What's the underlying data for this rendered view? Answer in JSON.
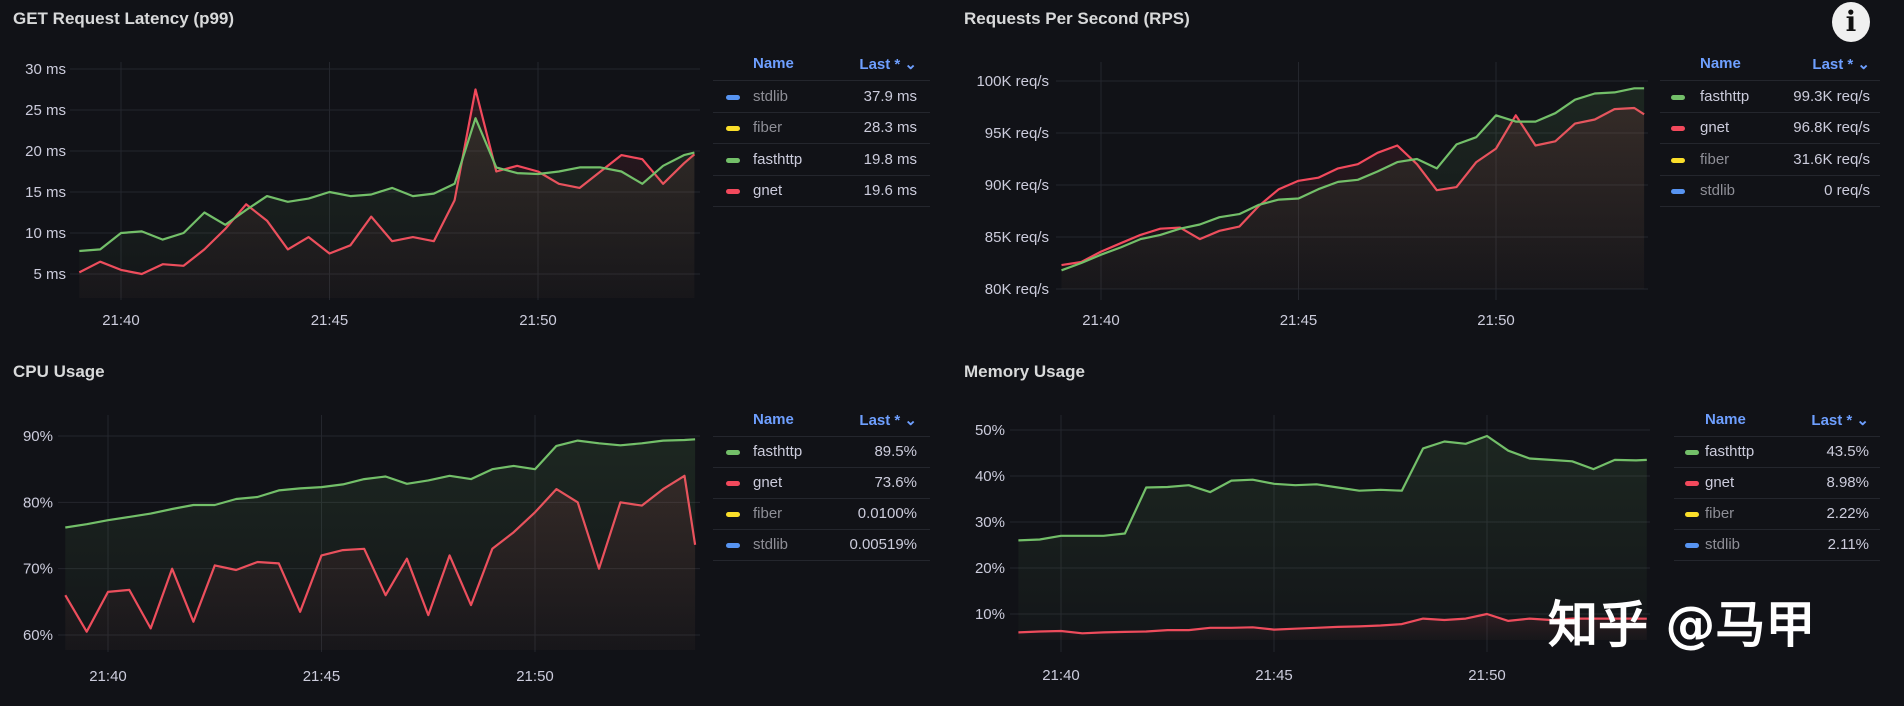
{
  "info_button_glyph": "i",
  "watermark": "知乎 @马甲",
  "colors": {
    "fasthttp": "#73bf69",
    "gnet": "#f2495c",
    "fiber": "#fade2a",
    "stdlib": "#5794f2",
    "legend_header": "#6e9fff"
  },
  "x": [
    "21:39:00",
    "21:39:30",
    "21:40:00",
    "21:40:30",
    "21:41:00",
    "21:41:30",
    "21:42:00",
    "21:42:30",
    "21:43:00",
    "21:43:30",
    "21:44:00",
    "21:44:30",
    "21:45:00",
    "21:45:30",
    "21:46:00",
    "21:46:30",
    "21:47:00",
    "21:47:30",
    "21:48:00",
    "21:48:30",
    "21:49:00",
    "21:49:30",
    "21:50:00",
    "21:50:30",
    "21:51:00",
    "21:51:30",
    "21:52:00",
    "21:52:30",
    "21:53:00",
    "21:53:30",
    "21:53:45"
  ],
  "chart_data": [
    {
      "type": "line",
      "title": "GET Request Latency (p99)",
      "xticks": [
        "21:40",
        "21:45",
        "21:50"
      ],
      "yticks": [
        "5 ms",
        "10 ms",
        "15 ms",
        "20 ms",
        "25 ms",
        "30 ms"
      ],
      "ytick_values": [
        5,
        10,
        15,
        20,
        25,
        30
      ],
      "grid": true,
      "legend": "right",
      "legend_header": {
        "name": "Name",
        "last": "Last * ⌄"
      },
      "legend_rows": [
        {
          "name": "stdlib",
          "last": "37.9 ms"
        },
        {
          "name": "fiber",
          "last": "28.3 ms"
        },
        {
          "name": "fasthttp",
          "last": "19.8 ms"
        },
        {
          "name": "gnet",
          "last": "19.6 ms"
        }
      ],
      "series": [
        {
          "name": "fasthttp",
          "values": [
            7.8,
            8.0,
            10,
            10.2,
            9.2,
            10,
            12.5,
            11,
            12.8,
            14.5,
            13.8,
            14.2,
            15,
            14.5,
            14.7,
            15.5,
            14.5,
            14.8,
            16,
            24,
            18,
            17.3,
            17.2,
            17.5,
            18,
            18,
            17.5,
            16,
            18.2,
            19.5,
            19.8
          ]
        },
        {
          "name": "gnet",
          "values": [
            5.2,
            6.5,
            5.5,
            5.0,
            6.2,
            6.0,
            8.0,
            10.5,
            13.5,
            11.5,
            8.0,
            9.5,
            7.5,
            8.5,
            12.0,
            9.0,
            9.5,
            9.0,
            14,
            27.5,
            17.5,
            18.2,
            17.5,
            16,
            15.5,
            17.5,
            19.5,
            19,
            16,
            18.5,
            19.6
          ]
        }
      ]
    },
    {
      "type": "line",
      "title": "Requests Per Second (RPS)",
      "xticks": [
        "21:40",
        "21:45",
        "21:50"
      ],
      "yticks": [
        "80K req/s",
        "85K req/s",
        "90K req/s",
        "95K req/s",
        "100K req/s"
      ],
      "ytick_values": [
        80000,
        85000,
        90000,
        95000,
        100000
      ],
      "grid": true,
      "legend": "right",
      "legend_header": {
        "name": "Name",
        "last": "Last * ⌄"
      },
      "legend_rows": [
        {
          "name": "fasthttp",
          "last": "99.3K req/s"
        },
        {
          "name": "gnet",
          "last": "96.8K req/s"
        },
        {
          "name": "fiber",
          "last": "31.6K req/s"
        },
        {
          "name": "stdlib",
          "last": "0 req/s"
        }
      ],
      "series": [
        {
          "name": "fasthttp",
          "values": [
            81800,
            82500,
            83300,
            84000,
            84800,
            85200,
            85800,
            86200,
            86900,
            87200,
            88100,
            88600,
            88700,
            89600,
            90300,
            90500,
            91300,
            92200,
            92500,
            91600,
            93900,
            94600,
            96700,
            96100,
            96100,
            96900,
            98200,
            98800,
            98900,
            99300,
            99300
          ]
        },
        {
          "name": "gnet",
          "values": [
            82300,
            82600,
            83600,
            84400,
            85200,
            85800,
            85900,
            84800,
            85600,
            86000,
            88000,
            89600,
            90400,
            90700,
            91600,
            92000,
            93100,
            93800,
            92000,
            89500,
            89800,
            92200,
            93500,
            96700,
            93800,
            94200,
            95900,
            96300,
            97300,
            97400,
            96800
          ]
        }
      ]
    },
    {
      "type": "line",
      "title": "CPU Usage",
      "xticks": [
        "21:40",
        "21:45",
        "21:50"
      ],
      "yticks": [
        "60%",
        "70%",
        "80%",
        "90%"
      ],
      "ytick_values": [
        60,
        70,
        80,
        90
      ],
      "grid": true,
      "legend": "right",
      "legend_header": {
        "name": "Name",
        "last": "Last * ⌄"
      },
      "legend_rows": [
        {
          "name": "fasthttp",
          "last": "89.5%"
        },
        {
          "name": "gnet",
          "last": "73.6%"
        },
        {
          "name": "fiber",
          "last": "0.0100%"
        },
        {
          "name": "stdlib",
          "last": "0.00519%"
        }
      ],
      "series": [
        {
          "name": "fasthttp",
          "values": [
            76.2,
            76.7,
            77.3,
            77.8,
            78.3,
            79.0,
            79.6,
            79.6,
            80.5,
            80.8,
            81.8,
            82.1,
            82.3,
            82.7,
            83.5,
            83.9,
            82.8,
            83.3,
            84,
            83.5,
            85,
            85.5,
            85,
            88.5,
            89.3,
            88.9,
            88.6,
            88.9,
            89.3,
            89.4,
            89.5
          ]
        },
        {
          "name": "gnet",
          "values": [
            66,
            60.5,
            66.5,
            66.8,
            61,
            70,
            62,
            70.5,
            69.8,
            71,
            70.8,
            63.5,
            72,
            72.8,
            73,
            66,
            71.5,
            63,
            72,
            64.5,
            73,
            75.5,
            78.5,
            82,
            80,
            70,
            80,
            79.5,
            82,
            84,
            73.6
          ]
        }
      ]
    },
    {
      "type": "line",
      "title": "Memory Usage",
      "xticks": [
        "21:40",
        "21:45",
        "21:50"
      ],
      "yticks": [
        "10%",
        "20%",
        "30%",
        "40%",
        "50%"
      ],
      "ytick_values": [
        10,
        20,
        30,
        40,
        50
      ],
      "grid": true,
      "legend": "right",
      "legend_header": {
        "name": "Name",
        "last": "Last * ⌄"
      },
      "legend_rows": [
        {
          "name": "fasthttp",
          "last": "43.5%"
        },
        {
          "name": "gnet",
          "last": "8.98%"
        },
        {
          "name": "fiber",
          "last": "2.22%"
        },
        {
          "name": "stdlib",
          "last": "2.11%"
        }
      ],
      "series": [
        {
          "name": "fasthttp",
          "values": [
            26,
            26.2,
            27,
            27,
            27,
            27.5,
            37.5,
            37.6,
            38,
            36.5,
            39,
            39.2,
            38.3,
            38,
            38.2,
            37.5,
            36.8,
            37,
            36.8,
            46,
            47.5,
            47,
            48.7,
            45.5,
            43.8,
            43.5,
            43.2,
            41.5,
            43.5,
            43.4,
            43.5
          ]
        },
        {
          "name": "gnet",
          "values": [
            6,
            6.2,
            6.3,
            5.8,
            6,
            6.1,
            6.2,
            6.5,
            6.5,
            7,
            7,
            7.1,
            6.6,
            6.8,
            7,
            7.2,
            7.3,
            7.5,
            7.8,
            9,
            8.7,
            9,
            10,
            8.5,
            9,
            8.7,
            9,
            9,
            9,
            9,
            8.98
          ]
        }
      ]
    }
  ]
}
